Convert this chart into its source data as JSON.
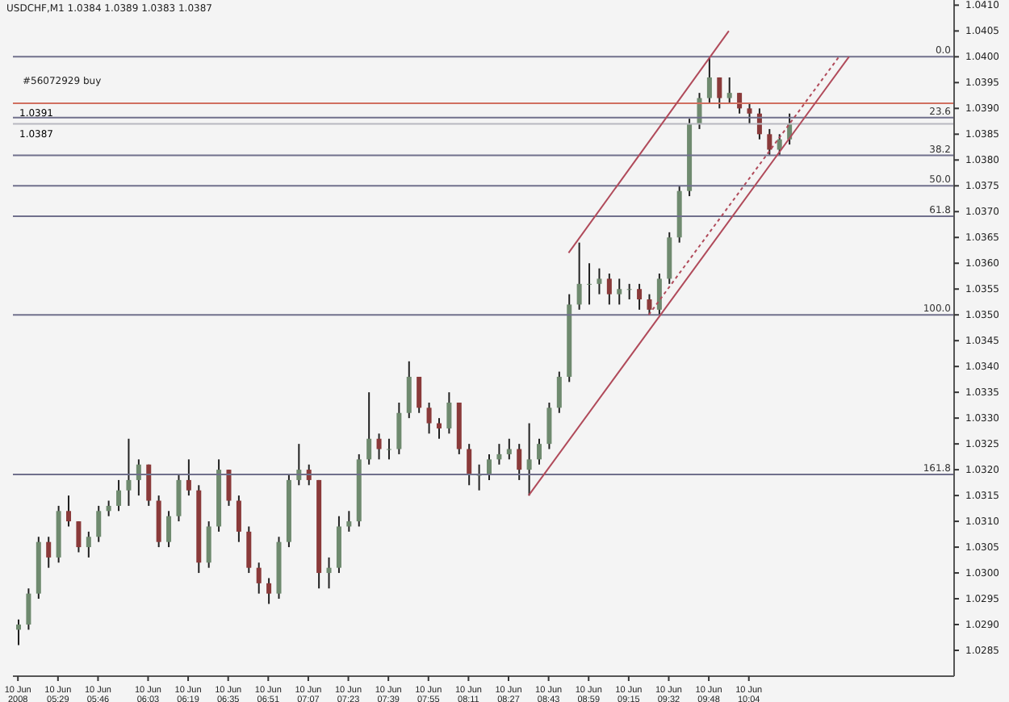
{
  "chart_data": {
    "type": "candlestick",
    "title": "USDCHF,M1  1.0384 1.0389 1.0383 1.0387",
    "annotations": [
      {
        "text": "#56072929 buy",
        "y": 1.0391
      },
      "0.0",
      "23.6",
      "38.2",
      "50.0",
      "61.8",
      "100.0",
      "161.8"
    ],
    "categories": [
      "10 Jun 2008",
      null,
      null,
      null,
      "10 Jun 05:29",
      null,
      null,
      null,
      "10 Jun 05:46",
      null,
      null,
      null,
      null,
      "10 Jun 06:03",
      null,
      null,
      null,
      "10 Jun 06:19",
      null,
      null,
      null,
      "10 Jun 06:35",
      null,
      null,
      null,
      "10 Jun 06:51",
      null,
      null,
      null,
      "10 Jun 07:07",
      null,
      null,
      null,
      "10 Jun 07:23",
      null,
      null,
      null,
      "10 Jun 07:39",
      null,
      null,
      null,
      "10 Jun 07:55",
      null,
      null,
      null,
      "10 Jun 08:11",
      null,
      null,
      null,
      "10 Jun 08:27",
      null,
      null,
      null,
      "10 Jun 08:43",
      null,
      null,
      null,
      "10 Jun 08:59",
      null,
      null,
      null,
      "10 Jun 09:15",
      null,
      null,
      null,
      "10 Jun 09:32",
      null,
      null,
      null,
      "10 Jun 09:48",
      null,
      null,
      null,
      "10 Jun 10:04",
      null,
      null,
      null,
      null,
      null,
      null,
      null,
      null,
      null,
      null,
      null,
      null,
      null,
      null,
      null,
      null,
      null,
      null,
      null,
      null
    ],
    "ohlc": [
      [
        1.0289,
        1.0291,
        1.0286,
        1.029
      ],
      [
        1.029,
        1.0297,
        1.0289,
        1.0296
      ],
      [
        1.0296,
        1.0307,
        1.0295,
        1.0306
      ],
      [
        1.0306,
        1.0307,
        1.0301,
        1.0303
      ],
      [
        1.0303,
        1.0313,
        1.0302,
        1.0312
      ],
      [
        1.0312,
        1.0315,
        1.0309,
        1.031
      ],
      [
        1.031,
        1.031,
        1.0304,
        1.0305
      ],
      [
        1.0305,
        1.0308,
        1.0303,
        1.0307
      ],
      [
        1.0307,
        1.0313,
        1.0306,
        1.0312
      ],
      [
        1.0312,
        1.0314,
        1.0311,
        1.0313
      ],
      [
        1.0313,
        1.0318,
        1.0312,
        1.0316
      ],
      [
        1.0316,
        1.0326,
        1.0313,
        1.0318
      ],
      [
        1.0318,
        1.0322,
        1.0315,
        1.0321
      ],
      [
        1.0321,
        1.0321,
        1.0313,
        1.0314
      ],
      [
        1.0314,
        1.0315,
        1.0305,
        1.0306
      ],
      [
        1.0306,
        1.0312,
        1.0305,
        1.0311
      ],
      [
        1.0311,
        1.0319,
        1.031,
        1.0318
      ],
      [
        1.0318,
        1.0322,
        1.0315,
        1.0316
      ],
      [
        1.0316,
        1.0317,
        1.03,
        1.0302
      ],
      [
        1.0302,
        1.031,
        1.0301,
        1.0309
      ],
      [
        1.0309,
        1.0322,
        1.0308,
        1.032
      ],
      [
        1.032,
        1.032,
        1.0313,
        1.0314
      ],
      [
        1.0314,
        1.0315,
        1.0306,
        1.0308
      ],
      [
        1.0308,
        1.0309,
        1.03,
        1.0301
      ],
      [
        1.0301,
        1.0302,
        1.0296,
        1.0298
      ],
      [
        1.0298,
        1.0299,
        1.0294,
        1.0296
      ],
      [
        1.0296,
        1.0307,
        1.0295,
        1.0306
      ],
      [
        1.0306,
        1.0319,
        1.0305,
        1.0318
      ],
      [
        1.0318,
        1.0325,
        1.0317,
        1.032
      ],
      [
        1.032,
        1.0321,
        1.0317,
        1.0318
      ],
      [
        1.0318,
        1.0318,
        1.0297,
        1.03
      ],
      [
        1.03,
        1.0303,
        1.0297,
        1.0301
      ],
      [
        1.0301,
        1.0311,
        1.03,
        1.0309
      ],
      [
        1.0309,
        1.0312,
        1.0308,
        1.031
      ],
      [
        1.031,
        1.0323,
        1.0309,
        1.0322
      ],
      [
        1.0322,
        1.0335,
        1.0321,
        1.0326
      ],
      [
        1.0326,
        1.0327,
        1.0322,
        1.0324
      ],
      [
        1.0324,
        1.0326,
        1.0322,
        1.0324
      ],
      [
        1.0324,
        1.0333,
        1.0323,
        1.0331
      ],
      [
        1.0331,
        1.0341,
        1.033,
        1.0338
      ],
      [
        1.0338,
        1.0338,
        1.0331,
        1.0332
      ],
      [
        1.0332,
        1.0333,
        1.0327,
        1.0329
      ],
      [
        1.0329,
        1.033,
        1.0326,
        1.0328
      ],
      [
        1.0328,
        1.0335,
        1.0327,
        1.0333
      ],
      [
        1.0333,
        1.0333,
        1.0323,
        1.0324
      ],
      [
        1.0324,
        1.0325,
        1.0317,
        1.0319
      ],
      [
        1.0319,
        1.0321,
        1.0316,
        1.0319
      ],
      [
        1.0319,
        1.0323,
        1.0318,
        1.0322
      ],
      [
        1.0322,
        1.0325,
        1.0321,
        1.0323
      ],
      [
        1.0323,
        1.0326,
        1.0322,
        1.0324
      ],
      [
        1.0324,
        1.0325,
        1.0318,
        1.032
      ],
      [
        1.032,
        1.0329,
        1.0315,
        1.0322
      ],
      [
        1.0322,
        1.0326,
        1.0321,
        1.0325
      ],
      [
        1.0325,
        1.0333,
        1.0324,
        1.0332
      ],
      [
        1.0332,
        1.0339,
        1.0331,
        1.0338
      ],
      [
        1.0338,
        1.0354,
        1.0337,
        1.0352
      ],
      [
        1.0352,
        1.0364,
        1.0351,
        1.0356
      ],
      [
        1.0356,
        1.036,
        1.0352,
        1.0356
      ],
      [
        1.0356,
        1.0359,
        1.0354,
        1.0357
      ],
      [
        1.0357,
        1.0358,
        1.0352,
        1.0354
      ],
      [
        1.0354,
        1.0357,
        1.0352,
        1.0355
      ],
      [
        1.0355,
        1.0356,
        1.0353,
        1.0355
      ],
      [
        1.0355,
        1.0356,
        1.0351,
        1.0353
      ],
      [
        1.0353,
        1.0354,
        1.035,
        1.0351
      ],
      [
        1.0351,
        1.0358,
        1.035,
        1.0357
      ],
      [
        1.0357,
        1.0366,
        1.0356,
        1.0365
      ],
      [
        1.0365,
        1.0375,
        1.0364,
        1.0374
      ],
      [
        1.0374,
        1.0388,
        1.0373,
        1.0387
      ],
      [
        1.0387,
        1.0393,
        1.0386,
        1.0392
      ],
      [
        1.0392,
        1.04,
        1.0391,
        1.0396
      ],
      [
        1.0396,
        1.0396,
        1.039,
        1.0392
      ],
      [
        1.0392,
        1.0396,
        1.0391,
        1.0393
      ],
      [
        1.0393,
        1.0393,
        1.0389,
        1.039
      ],
      [
        1.039,
        1.0391,
        1.0387,
        1.0389
      ],
      [
        1.0389,
        1.039,
        1.0384,
        1.0385
      ],
      [
        1.0385,
        1.0386,
        1.0381,
        1.0382
      ],
      [
        1.0382,
        1.0385,
        1.0381,
        1.0384
      ],
      [
        1.0384,
        1.0389,
        1.0383,
        1.0387
      ],
      null,
      null,
      null,
      null,
      null,
      null,
      null,
      null,
      null,
      null,
      null,
      null,
      null,
      null,
      null,
      null
    ],
    "series": [
      {
        "type": "line",
        "color": "#b04a5a",
        "values": [
          null,
          null,
          null,
          null,
          null,
          null,
          null,
          null,
          null,
          null,
          null,
          null,
          null,
          null,
          null,
          null,
          null,
          null,
          null,
          null,
          null,
          null,
          null,
          null,
          null,
          null,
          null,
          null,
          null,
          null,
          null,
          null,
          null,
          null,
          null,
          null,
          null,
          null,
          null,
          null,
          null,
          null,
          null,
          null,
          null,
          null,
          null,
          null,
          null,
          null,
          null,
          1.0315,
          null,
          null,
          null,
          null,
          null,
          null,
          null,
          null,
          null,
          null,
          null,
          null,
          null,
          null,
          null,
          null,
          null,
          null,
          null,
          null,
          null,
          null,
          null,
          null,
          null,
          null,
          null,
          null,
          null,
          null,
          null,
          1.04,
          null,
          null,
          null,
          null,
          null,
          null,
          null,
          null,
          null,
          null
        ]
      },
      {
        "type": "line",
        "color": "#b04a5a",
        "values": [
          null,
          null,
          null,
          null,
          null,
          null,
          null,
          null,
          null,
          null,
          null,
          null,
          null,
          null,
          null,
          null,
          null,
          null,
          null,
          null,
          null,
          null,
          null,
          null,
          null,
          null,
          null,
          null,
          null,
          null,
          null,
          null,
          null,
          null,
          null,
          null,
          null,
          null,
          null,
          null,
          null,
          null,
          null,
          null,
          null,
          null,
          null,
          null,
          null,
          null,
          null,
          null,
          null,
          null,
          null,
          1.0362,
          null,
          null,
          null,
          null,
          null,
          null,
          null,
          null,
          null,
          null,
          null,
          null,
          null,
          null,
          null,
          1.0405,
          null,
          null,
          null,
          null,
          null,
          null,
          null,
          null,
          null,
          null,
          null,
          null,
          null,
          null,
          null,
          null,
          null,
          null,
          null,
          null,
          null,
          null
        ]
      },
      {
        "type": "line",
        "color": "#b04a5a",
        "line_style": "dotted",
        "values": [
          null,
          null,
          null,
          null,
          null,
          null,
          null,
          null,
          null,
          null,
          null,
          null,
          null,
          null,
          null,
          null,
          null,
          null,
          null,
          null,
          null,
          null,
          null,
          null,
          null,
          null,
          null,
          null,
          null,
          null,
          null,
          null,
          null,
          null,
          null,
          null,
          null,
          null,
          null,
          null,
          null,
          null,
          null,
          null,
          null,
          null,
          null,
          null,
          null,
          null,
          null,
          null,
          null,
          null,
          null,
          null,
          null,
          null,
          null,
          null,
          null,
          null,
          null,
          1.035,
          null,
          null,
          null,
          null,
          null,
          null,
          null,
          null,
          null,
          null,
          null,
          null,
          null,
          null,
          null,
          null,
          null,
          null,
          1.04,
          null,
          null,
          null,
          null,
          null,
          null,
          null,
          null,
          null,
          null,
          null
        ]
      }
    ],
    "ref_lines": [
      {
        "axis": "y",
        "value": 1.0391,
        "label": "1.0391",
        "color": "#d07060"
      },
      {
        "axis": "y",
        "value": 1.0387,
        "label": "1.0387",
        "color": "#b8b8c0"
      },
      {
        "axis": "y",
        "value": 1.04,
        "color": "#70708c"
      },
      {
        "axis": "y",
        "value": 1.03882,
        "color": "#70708c"
      },
      {
        "axis": "y",
        "value": 1.03809,
        "color": "#70708c"
      },
      {
        "axis": "y",
        "value": 1.0375,
        "color": "#70708c"
      },
      {
        "axis": "y",
        "value": 1.03691,
        "color": "#70708c"
      },
      {
        "axis": "y",
        "value": 1.035,
        "color": "#70708c"
      },
      {
        "axis": "y",
        "value": 1.03191,
        "color": "#70708c"
      }
    ],
    "ylim": [
      1.028,
      1.0411
    ],
    "yticks": [
      1.0285,
      {
        "value": 1.029,
        "label": "1.0290"
      },
      1.0295,
      {
        "value": 1.03,
        "label": "1.0300"
      },
      1.0305,
      {
        "value": 1.031,
        "label": "1.0310"
      },
      1.0315,
      {
        "value": 1.032,
        "label": "1.0320"
      },
      1.0325,
      {
        "value": 1.033,
        "label": "1.0330"
      },
      1.0335,
      {
        "value": 1.034,
        "label": "1.0340"
      },
      1.0345,
      {
        "value": 1.035,
        "label": "1.0350"
      },
      1.0355,
      {
        "value": 1.036,
        "label": "1.0360"
      },
      1.0365,
      {
        "value": 1.037,
        "label": "1.0370"
      },
      1.0375,
      {
        "value": 1.038,
        "label": "1.0380"
      },
      1.0385,
      {
        "value": 1.039,
        "label": "1.0390"
      },
      1.0395,
      {
        "value": 1.04,
        "label": "1.0400"
      },
      1.0405,
      {
        "value": 1.041,
        "label": "1.0410"
      }
    ]
  }
}
